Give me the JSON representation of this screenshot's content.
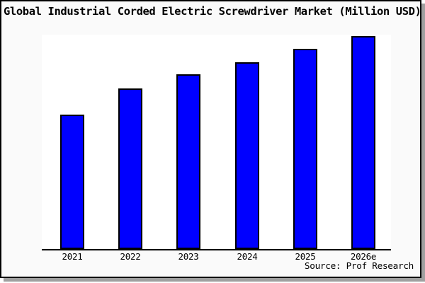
{
  "title": "Global Industrial Corded Electric Screwdriver Market (Million USD)",
  "source": "Source: Prof Research",
  "colors": {
    "bar_fill": "#0000ff",
    "bar_border": "#000000",
    "plot_background": "#ffffff",
    "page_background": "#fafafa",
    "frame_border": "#000000",
    "frame_shadow": "#a0a0a0",
    "text": "#000000"
  },
  "chart_data": {
    "type": "bar",
    "title": "Global Industrial Corded Electric Screwdriver Market (Million USD)",
    "categories": [
      "2021",
      "2022",
      "2023",
      "2024",
      "2025",
      "2026e"
    ],
    "values": [
      63.1,
      75.4,
      82.1,
      87.7,
      94.0,
      100
    ],
    "series_note": "no numeric y-axis shown; values are relative bar heights as % of tallest (2026e) bar",
    "xlabel": "",
    "ylabel": "",
    "ylim": [
      0,
      100
    ],
    "legend": false,
    "gridlines": false,
    "y_axis_visible": false,
    "x_axis_line": true
  }
}
